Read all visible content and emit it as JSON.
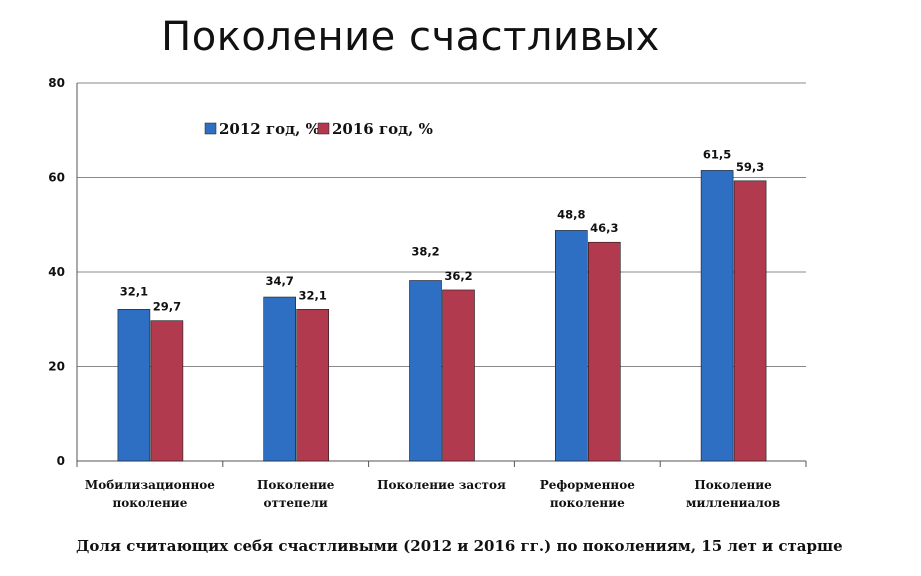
{
  "chart_data": {
    "type": "bar",
    "title": "Поколение счастливых",
    "caption": "Доля считающих себя счастливыми (2012 и 2016 гг.) по поколениям, 15 лет и старше",
    "categories": [
      [
        "Мобилизационное",
        "поколение"
      ],
      [
        "Поколение",
        "оттепели"
      ],
      [
        "Поколение застоя"
      ],
      [
        "Реформенное",
        "поколение"
      ],
      [
        "Поколение",
        "миллениалов"
      ]
    ],
    "series": [
      {
        "name": "2012 год, %",
        "color": "#2E6FC4",
        "values": [
          32.1,
          34.7,
          38.2,
          48.8,
          61.5
        ],
        "labels": [
          "32,1",
          "34,7",
          "38,2",
          "48,8",
          "61,5"
        ]
      },
      {
        "name": "2016 год, %",
        "color": "#B23A4E",
        "values": [
          29.7,
          32.1,
          36.2,
          46.3,
          59.3
        ],
        "labels": [
          "29,7",
          "32,1",
          "36,2",
          "46,3",
          "59,3"
        ]
      }
    ],
    "ylim": [
      0,
      80
    ],
    "yticks": [
      0,
      20,
      40,
      60,
      80
    ],
    "grid": true,
    "legend_position": "top-left inside plot"
  }
}
